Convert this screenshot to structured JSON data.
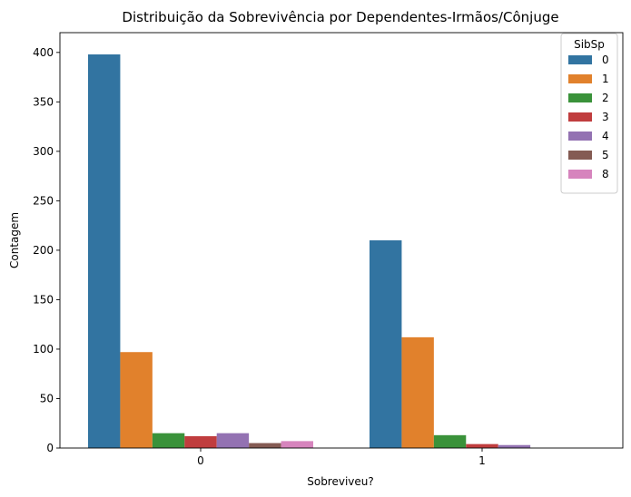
{
  "chart_data": {
    "type": "bar",
    "title": "Distribuição da Sobrevivência por Dependentes-Irmãos/Cônjuge",
    "xlabel": "Sobreviveu?",
    "ylabel": "Contagem",
    "categories": [
      "0",
      "1"
    ],
    "ylim": [
      0,
      420
    ],
    "yticks": [
      "0",
      "50",
      "100",
      "150",
      "200",
      "250",
      "300",
      "350",
      "400"
    ],
    "grid": false,
    "legend": {
      "title": "SibSp",
      "position": "top-right"
    },
    "series": [
      {
        "name": "0",
        "color": "#3274a1",
        "values": [
          398,
          210
        ]
      },
      {
        "name": "1",
        "color": "#e1812c",
        "values": [
          97,
          112
        ]
      },
      {
        "name": "2",
        "color": "#3a923a",
        "values": [
          15,
          13
        ]
      },
      {
        "name": "3",
        "color": "#c03d3e",
        "values": [
          12,
          4
        ]
      },
      {
        "name": "4",
        "color": "#9372b2",
        "values": [
          15,
          3
        ]
      },
      {
        "name": "5",
        "color": "#845b53",
        "values": [
          5,
          0
        ]
      },
      {
        "name": "8",
        "color": "#d684bd",
        "values": [
          7,
          0
        ]
      }
    ]
  }
}
